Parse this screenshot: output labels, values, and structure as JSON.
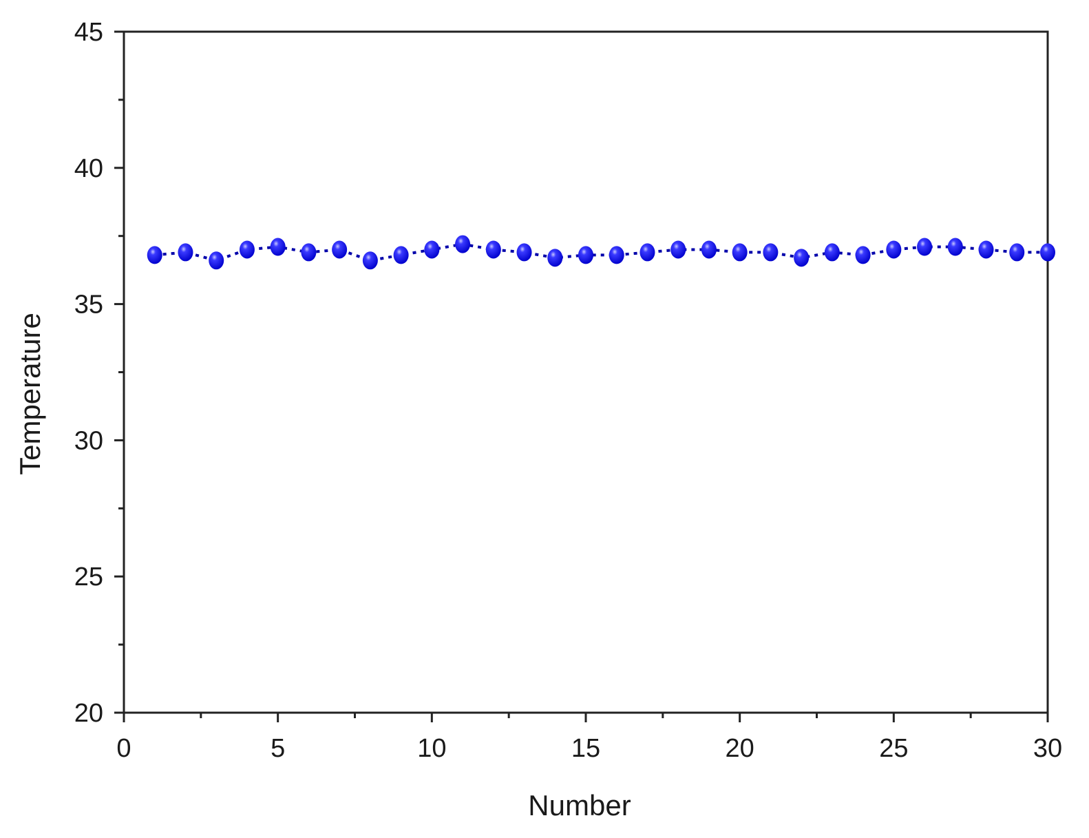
{
  "chart_data": {
    "type": "line",
    "title": "",
    "xlabel": "Number",
    "ylabel": "Temperature",
    "xlim": [
      0,
      30
    ],
    "ylim": [
      20,
      45
    ],
    "x_ticks": [
      "0",
      "5",
      "10",
      "15",
      "20",
      "25",
      "30"
    ],
    "y_ticks": [
      "20",
      "25",
      "30",
      "35",
      "40",
      "45"
    ],
    "grid": false,
    "line_style": "dotted",
    "marker": "sphere",
    "color": "#0000ee",
    "x": [
      1,
      2,
      3,
      4,
      5,
      6,
      7,
      8,
      9,
      10,
      11,
      12,
      13,
      14,
      15,
      16,
      17,
      18,
      19,
      20,
      21,
      22,
      23,
      24,
      25,
      26,
      27,
      28,
      29,
      30
    ],
    "y": [
      36.8,
      36.9,
      36.6,
      37.0,
      37.1,
      36.9,
      37.0,
      36.6,
      36.8,
      37.0,
      37.2,
      37.0,
      36.9,
      36.7,
      36.8,
      36.8,
      36.9,
      37.0,
      37.0,
      36.9,
      36.9,
      36.7,
      36.9,
      36.8,
      37.0,
      37.1,
      37.1,
      37.0,
      36.9,
      36.9
    ]
  }
}
